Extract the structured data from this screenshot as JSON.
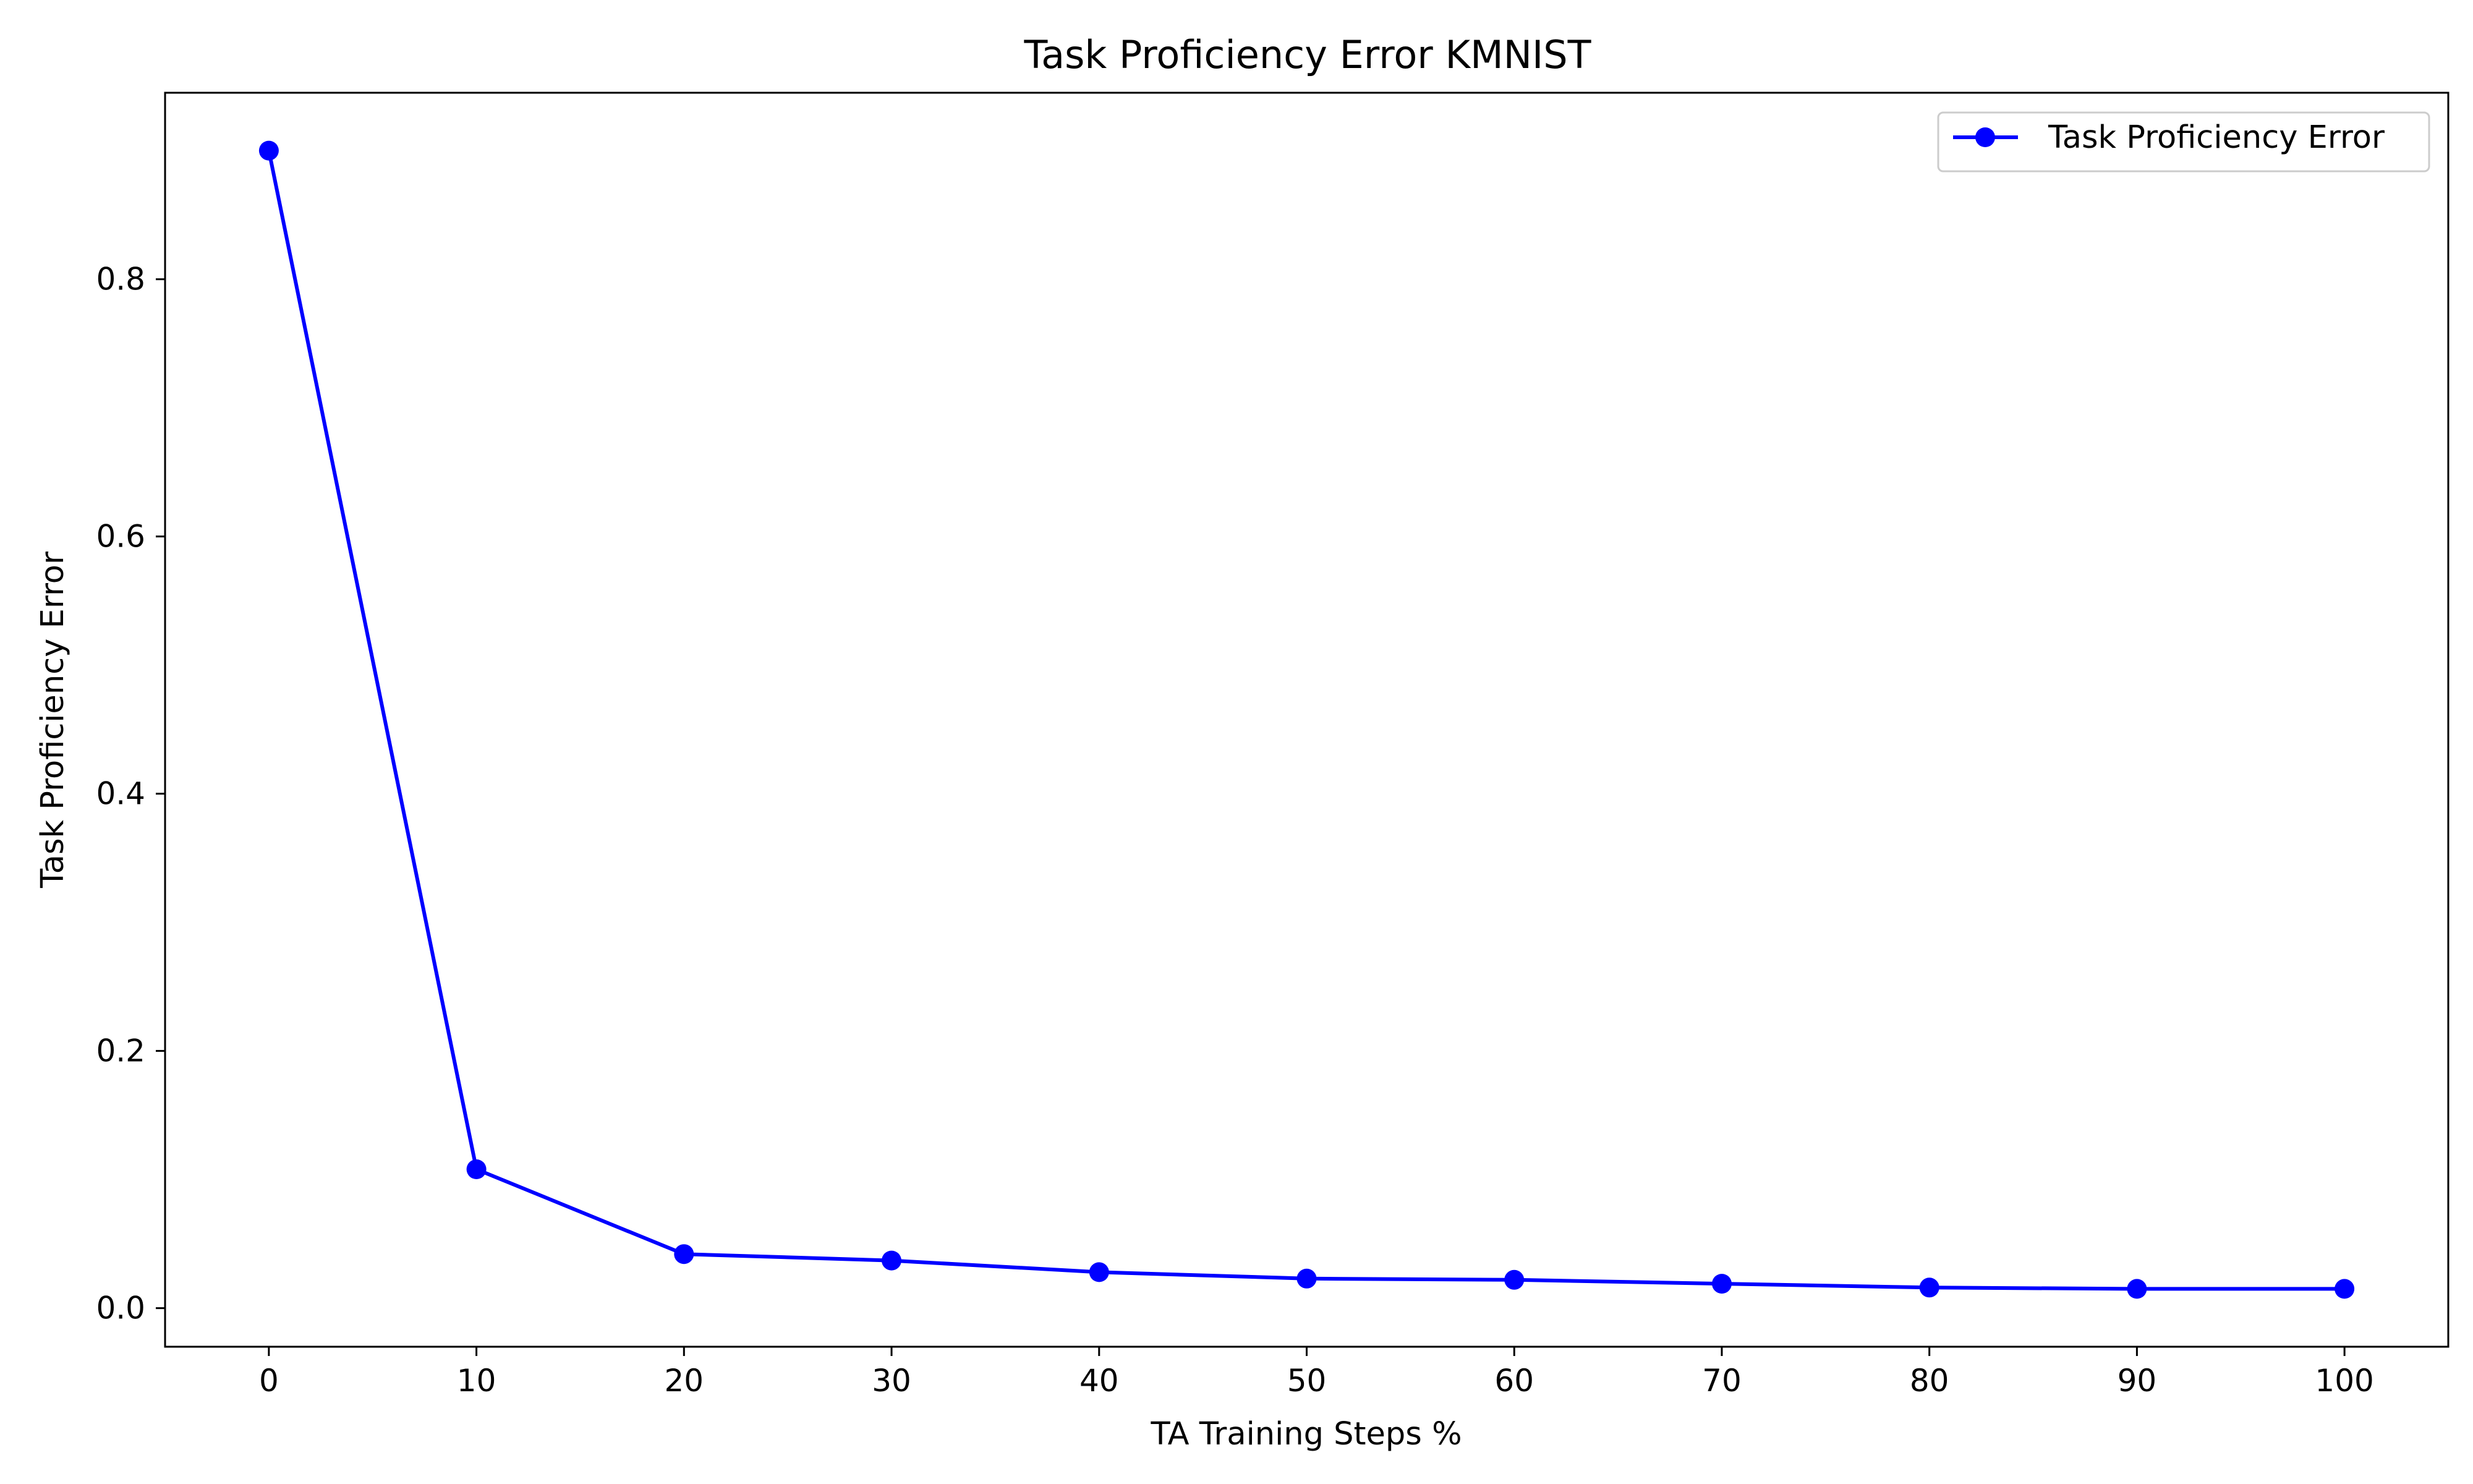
{
  "chart_data": {
    "type": "line",
    "title": "Task Proficiency Error KMNIST",
    "xlabel": "TA Training Steps %",
    "ylabel": "Task Proficiency Error",
    "x": [
      0,
      10,
      20,
      30,
      40,
      50,
      60,
      70,
      80,
      90,
      100
    ],
    "xticks": [
      0,
      10,
      20,
      30,
      40,
      50,
      60,
      70,
      80,
      90,
      100
    ],
    "yticks": [
      0.0,
      0.2,
      0.4,
      0.6,
      0.8
    ],
    "ytick_labels": [
      "0.0",
      "0.2",
      "0.4",
      "0.6",
      "0.8"
    ],
    "xlim": [
      -5,
      105
    ],
    "ylim": [
      -0.03,
      0.945
    ],
    "grid": false,
    "legend_position": "top-right",
    "series": [
      {
        "name": "Task Proficiency Error",
        "values": [
          0.9,
          0.108,
          0.042,
          0.037,
          0.028,
          0.023,
          0.022,
          0.019,
          0.016,
          0.015,
          0.015
        ],
        "color": "#0000ff",
        "marker": "circle"
      }
    ]
  }
}
